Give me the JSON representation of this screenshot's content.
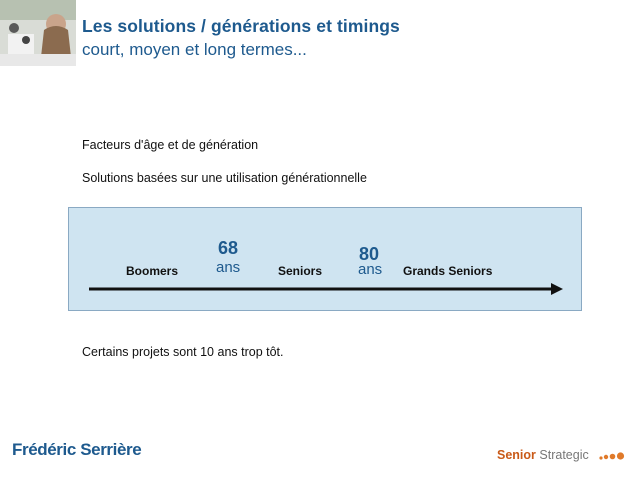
{
  "header": {
    "title": "Les solutions / générations et timings",
    "subtitle": "court, moyen et long termes..."
  },
  "body": {
    "line1": "Facteurs d'âge et de génération",
    "line2": "Solutions basées sur une utilisation générationnelle",
    "line3": "Certains projets sont 10 ans trop tôt."
  },
  "timeline": {
    "boomers": "Boomers",
    "age1": "68",
    "age1_unit": "ans",
    "seniors": "Seniors",
    "age2": "80",
    "age2_unit": "ans",
    "grands_seniors": "Grands Seniors"
  },
  "footer": {
    "author": "Frédéric Serrière",
    "brand_bold": "Senior",
    "brand_normal": "Strategic"
  },
  "colors": {
    "accent_blue": "#1e5a8e",
    "panel_fill": "#cfe4f1",
    "brand_orange": "#c95a18"
  }
}
